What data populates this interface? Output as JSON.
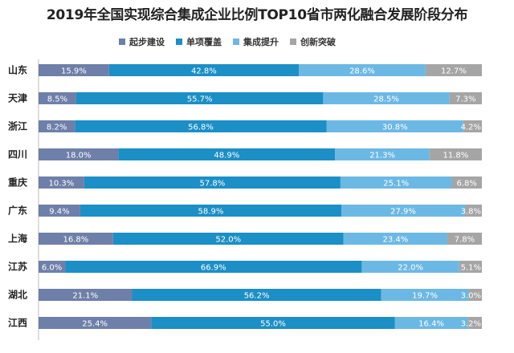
{
  "chart_data": {
    "type": "bar",
    "orientation": "horizontal",
    "stacked": true,
    "percent": true,
    "title": "2019年全国实现综合集成企业比例TOP10省市两化融合发展阶段分布",
    "legend_position": "top",
    "categories": [
      "山东",
      "天津",
      "浙江",
      "四川",
      "重庆",
      "广东",
      "上海",
      "江苏",
      "湖北",
      "江西"
    ],
    "series": [
      {
        "name": "起步建设",
        "color": "#6E7FA9",
        "values": [
          15.9,
          8.5,
          8.2,
          18.0,
          10.3,
          9.4,
          16.8,
          6.0,
          21.1,
          25.4
        ],
        "labels": [
          "15.9%",
          "8.5%",
          "8.2%",
          "18.0%",
          "10.3%",
          "9.4%",
          "16.8%",
          "6.0%",
          "21.1%",
          "25.4%"
        ]
      },
      {
        "name": "单项覆盖",
        "color": "#1B8FC6",
        "values": [
          42.8,
          55.7,
          56.8,
          48.9,
          57.8,
          58.9,
          52.0,
          66.9,
          56.2,
          55.0
        ],
        "labels": [
          "42.8%",
          "55.7%",
          "56.8%",
          "48.9%",
          "57.8%",
          "58.9%",
          "52.0%",
          "66.9%",
          "56.2%",
          "55.0%"
        ]
      },
      {
        "name": "集成提升",
        "color": "#6CB8E4",
        "values": [
          28.6,
          28.5,
          30.8,
          21.3,
          25.1,
          27.9,
          23.4,
          22.0,
          19.7,
          16.4
        ],
        "labels": [
          "28.6%",
          "28.5%",
          "30.8%",
          "21.3%",
          "25.1%",
          "27.9%",
          "23.4%",
          "22.0%",
          "19.7%",
          "16.4%"
        ]
      },
      {
        "name": "创新突破",
        "color": "#A5A5A5",
        "values": [
          12.7,
          7.3,
          4.2,
          11.8,
          6.8,
          3.8,
          7.8,
          5.1,
          3.0,
          3.2
        ],
        "labels": [
          "12.7%",
          "7.3%",
          "4.2%",
          "11.8%",
          "6.8%",
          "3.8%",
          "7.8%",
          "5.1%",
          "3.0%",
          "3.2%"
        ]
      }
    ],
    "xlim": [
      0,
      100
    ],
    "grid": false
  }
}
